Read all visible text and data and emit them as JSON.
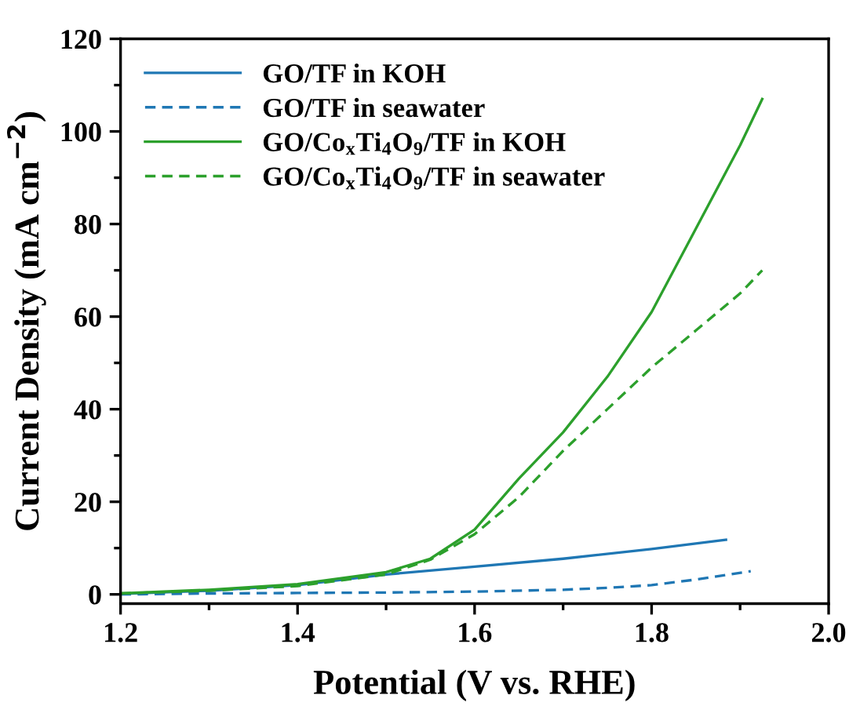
{
  "chart_data": {
    "type": "line",
    "xlabel": "Potential (V vs. RHE)",
    "ylabel": "Current Density (mA cm$^{−2}$)",
    "xlim": [
      1.2,
      2.0
    ],
    "ylim": [
      -2,
      120
    ],
    "xticks": [
      1.2,
      1.4,
      1.6,
      1.8,
      {
        "value": 2.0,
        "label": "2.0"
      }
    ],
    "yticks": [
      0,
      20,
      40,
      60,
      80,
      100,
      120
    ],
    "grid": false,
    "legend": "top left",
    "marker": "none",
    "series": [
      {
        "name": "GO/TF in KOH",
        "color": "#1f77b4",
        "line_style": "solid",
        "x": [
          1.2,
          1.3,
          1.4,
          1.5,
          1.6,
          1.7,
          1.8,
          1.884
        ],
        "values": [
          0.1,
          0.8,
          2,
          4.3,
          6,
          7.7,
          9.8,
          11.8
        ]
      },
      {
        "name": "GO/TF in seawater",
        "color": "#1f77b4",
        "line_style": "dashed",
        "x": [
          1.2,
          1.3,
          1.4,
          1.5,
          1.6,
          1.7,
          1.75,
          1.8,
          1.85,
          1.912
        ],
        "values": [
          0,
          0.2,
          0.3,
          0.4,
          0.6,
          1,
          1.4,
          2,
          3.2,
          5
        ]
      },
      {
        "name": "GO/Co$_{x}$Ti$_{4}$O$_{9}$/TF in KOH",
        "color": "#2ca02c",
        "line_style": "solid",
        "x": [
          1.2,
          1.3,
          1.4,
          1.5,
          1.55,
          1.6,
          1.65,
          1.7,
          1.75,
          1.8,
          1.85,
          1.9,
          1.925
        ],
        "values": [
          0.2,
          1,
          2.2,
          4.8,
          7.7,
          14,
          25,
          35,
          47,
          61,
          79,
          97,
          107
        ]
      },
      {
        "name": "GO/Co$_{x}$Ti$_{4}$O$_{9}$/TF in seawater",
        "color": "#2ca02c",
        "line_style": "dashed",
        "x": [
          1.2,
          1.3,
          1.4,
          1.5,
          1.55,
          1.6,
          1.65,
          1.7,
          1.75,
          1.8,
          1.85,
          1.9,
          1.925
        ],
        "values": [
          0.2,
          0.8,
          1.8,
          4.3,
          7.5,
          13,
          21,
          31,
          40,
          49,
          57,
          65,
          70
        ]
      }
    ]
  }
}
